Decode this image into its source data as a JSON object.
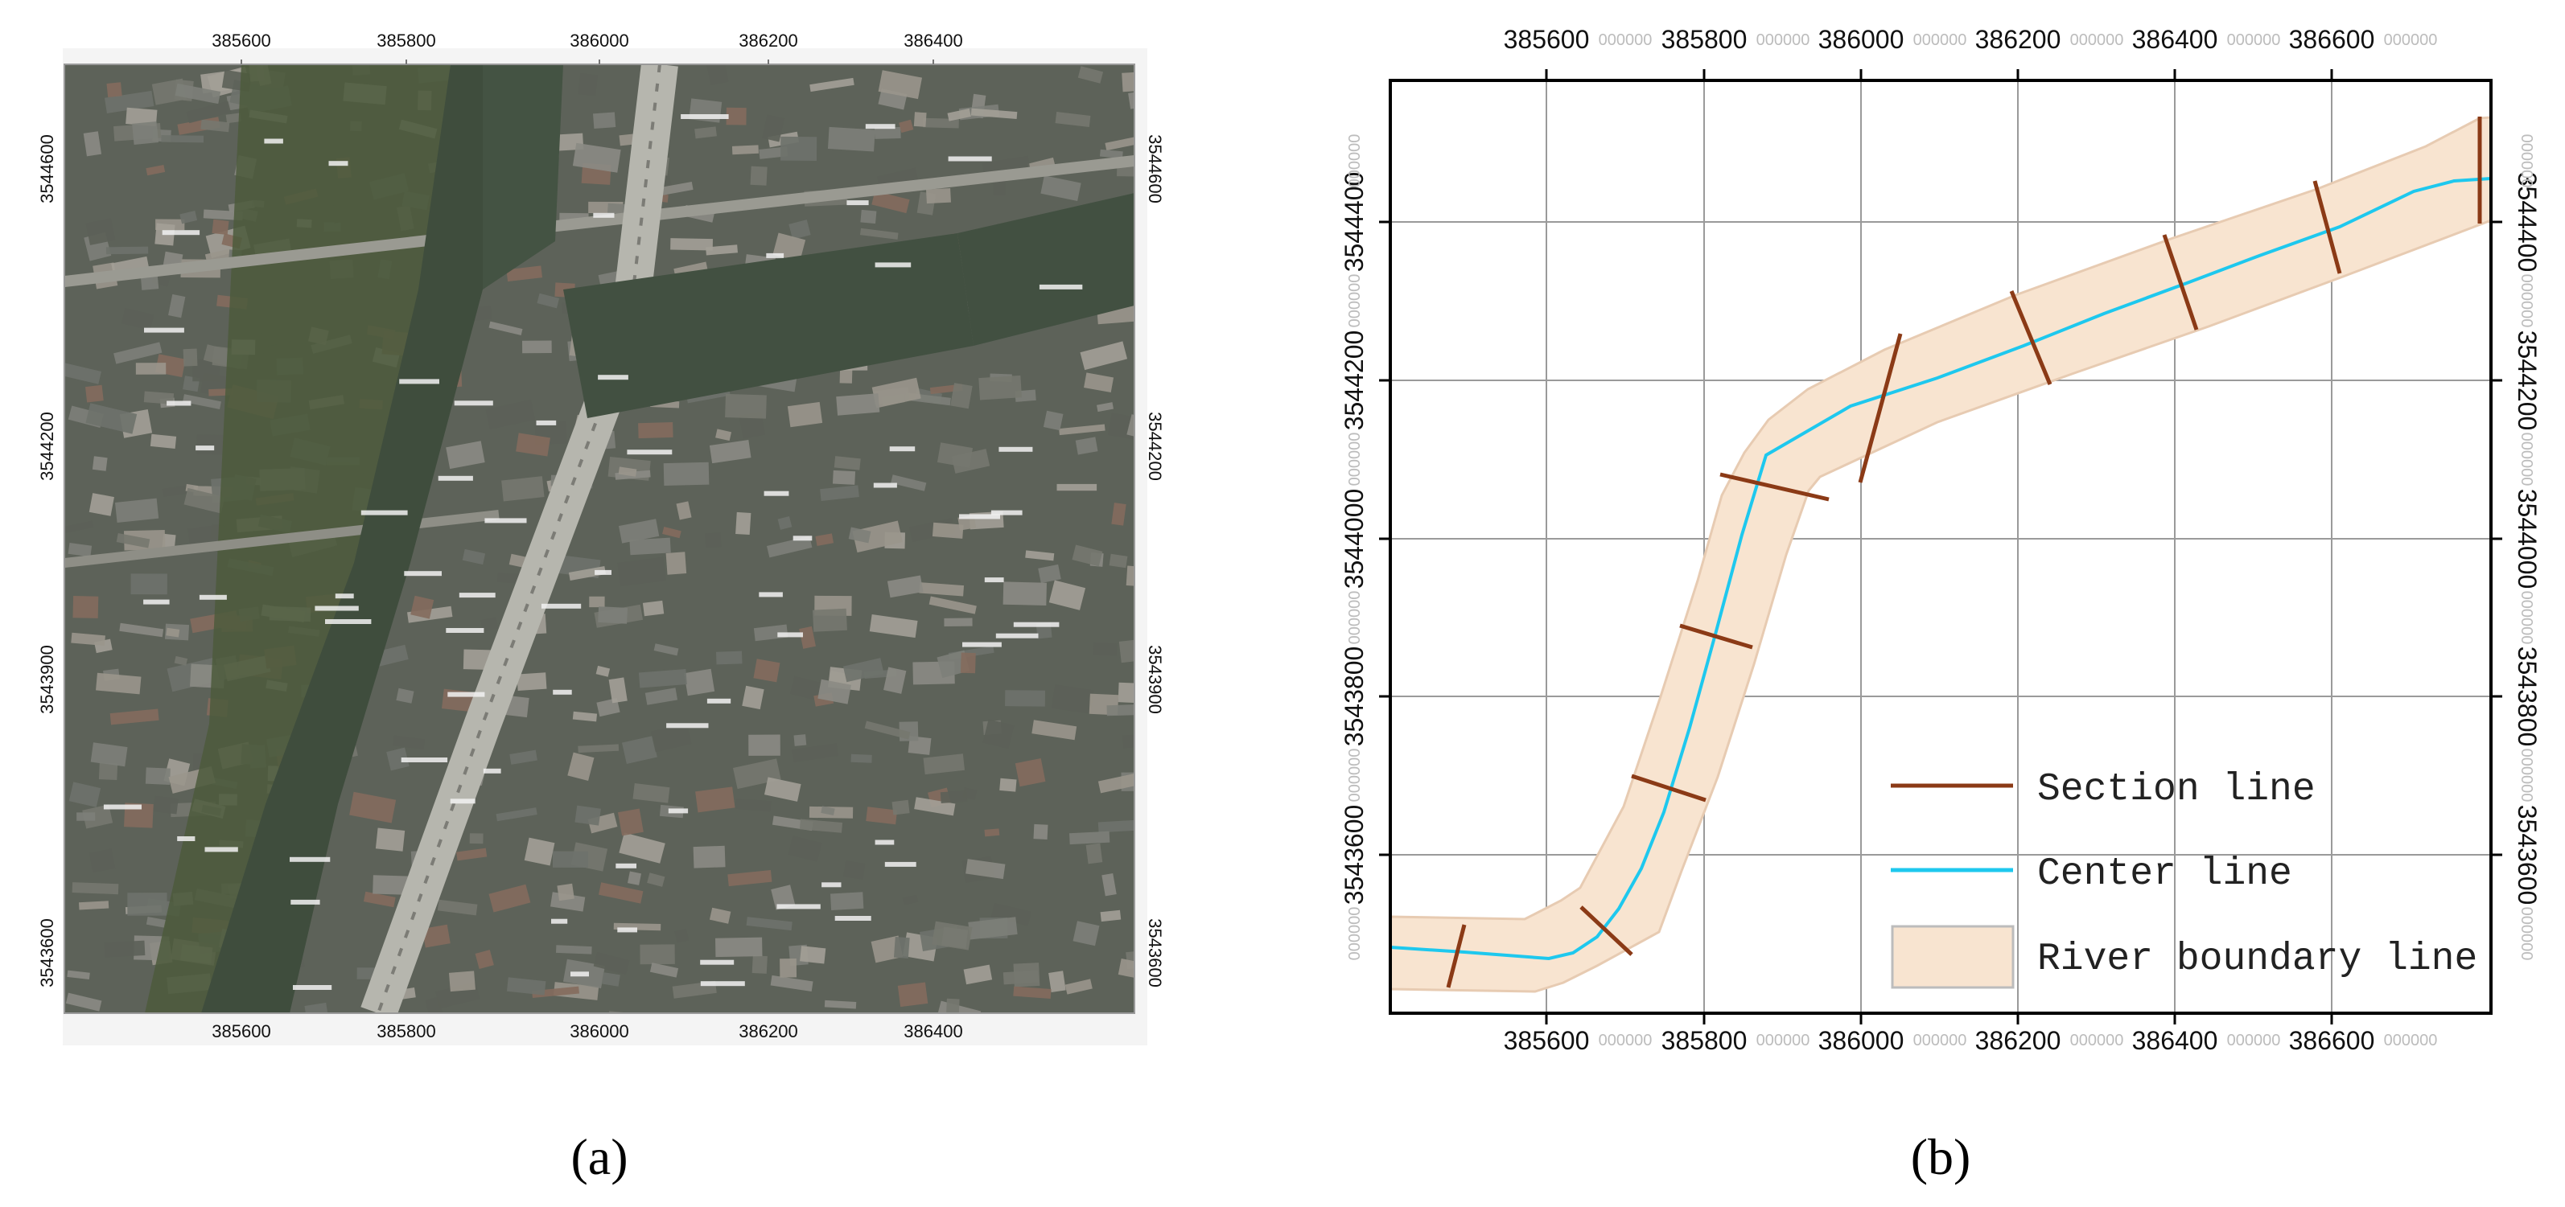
{
  "panel_a": {
    "label": "(a)",
    "x_ticks": [
      "385600",
      "385800",
      "386000",
      "386200",
      "386400"
    ],
    "y_ticks": [
      "3544600",
      "3544200",
      "3543900",
      "3543600"
    ]
  },
  "panel_b": {
    "label": "(b)",
    "x_ticks": [
      "385600",
      "385800",
      "386000",
      "386200",
      "386400",
      "386600"
    ],
    "x_minor": "000000",
    "y_ticks": [
      "3544400",
      "3544200",
      "3544000",
      "3543800",
      "3543600"
    ],
    "y_minor": "000000",
    "legend": {
      "section": "Section line",
      "center": "Center line",
      "boundary": "River boundary line"
    },
    "colors": {
      "section": "#8b3a16",
      "center": "#1ec8ee",
      "boundary_fill": "#f8e4d0",
      "boundary_stroke": "#e7cbb2"
    }
  }
}
